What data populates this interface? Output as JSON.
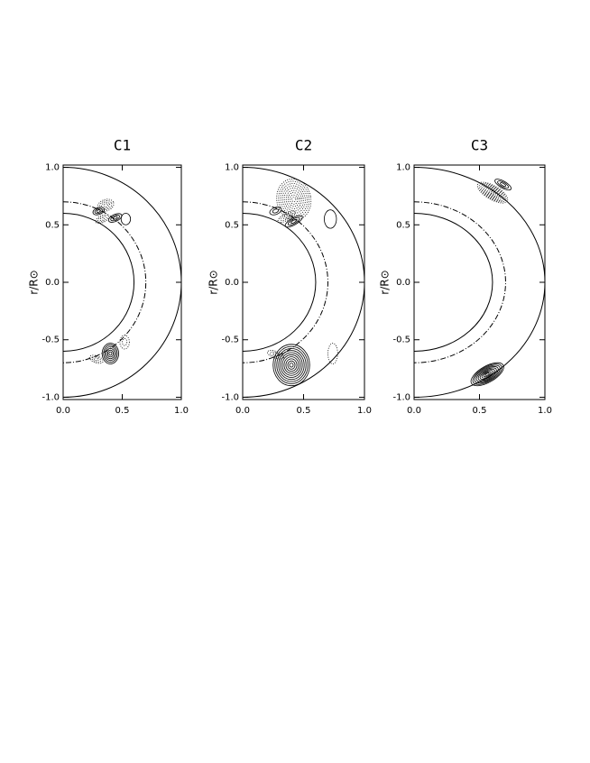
{
  "chart_data": [
    {
      "type": "contour",
      "title": "C1",
      "ylabel": "r/R⊙",
      "xlim": [
        0,
        1
      ],
      "ylim": [
        -1.02,
        1.02
      ],
      "xticks": [
        {
          "value": 0,
          "label": "0.0"
        },
        {
          "value": 0.5,
          "label": "0.5"
        },
        {
          "value": 1,
          "label": "1.0"
        }
      ],
      "yticks": [
        {
          "value": -1,
          "label": "-1.0"
        },
        {
          "value": -0.5,
          "label": "-0.5"
        },
        {
          "value": 0,
          "label": "0.0"
        },
        {
          "value": 0.5,
          "label": "0.5"
        },
        {
          "value": 1,
          "label": "1.0"
        }
      ]
    },
    {
      "type": "contour",
      "title": "C2",
      "ylabel": "r/R⊙",
      "xlim": [
        0,
        1
      ],
      "ylim": [
        -1.02,
        1.02
      ],
      "xticks": [
        {
          "value": 0,
          "label": "0.0"
        },
        {
          "value": 0.5,
          "label": "0.5"
        },
        {
          "value": 1,
          "label": "1.0"
        }
      ],
      "yticks": [
        {
          "value": -1,
          "label": "-1.0"
        },
        {
          "value": -0.5,
          "label": "-0.5"
        },
        {
          "value": 0,
          "label": "0.0"
        },
        {
          "value": 0.5,
          "label": "0.5"
        },
        {
          "value": 1,
          "label": "1.0"
        }
      ]
    },
    {
      "type": "contour",
      "title": "C3",
      "ylabel": "r/R⊙",
      "xlim": [
        0,
        1
      ],
      "ylim": [
        -1.02,
        1.02
      ],
      "xticks": [
        {
          "value": 0,
          "label": "0.0"
        },
        {
          "value": 0.5,
          "label": "0.5"
        },
        {
          "value": 1,
          "label": "1.0"
        }
      ],
      "yticks": [
        {
          "value": -1,
          "label": "-1.0"
        },
        {
          "value": -0.5,
          "label": "-0.5"
        },
        {
          "value": 0,
          "label": "0.0"
        },
        {
          "value": 0.5,
          "label": "0.5"
        },
        {
          "value": 1,
          "label": "1.0"
        }
      ]
    }
  ]
}
